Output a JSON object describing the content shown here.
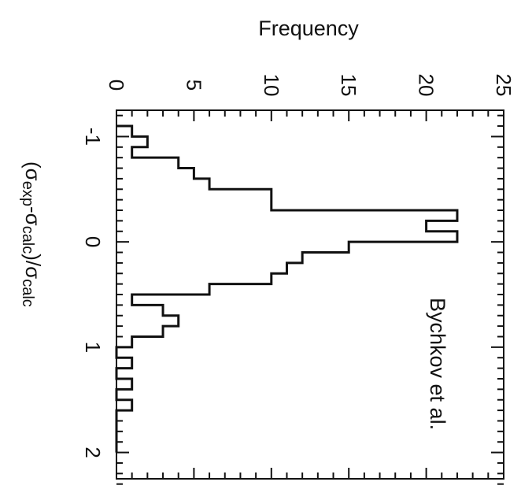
{
  "chart_data": {
    "type": "bar",
    "orientation": "rotated 90 degrees clockwise (x axis runs top to bottom, frequency runs left to right)",
    "title": "",
    "xlabel": "(σexp-σcalc)/σcalc",
    "xlabel_parts": [
      {
        "t": "(σ",
        "sub": false
      },
      {
        "t": "exp",
        "sub": true
      },
      {
        "t": "-σ",
        "sub": false
      },
      {
        "t": "calc",
        "sub": true
      },
      {
        "t": ")/σ",
        "sub": false
      },
      {
        "t": "calc",
        "sub": true
      }
    ],
    "ylabel": "Frequency",
    "annotation": "Bychkov et al.",
    "xlim": [
      -1.25,
      2.25
    ],
    "ylim": [
      0,
      25
    ],
    "x_ticks": [
      -1,
      0,
      1,
      2
    ],
    "x_tick_labels": [
      "-1",
      "0",
      "1",
      "2"
    ],
    "y_ticks": [
      0,
      5,
      10,
      15,
      20,
      25
    ],
    "y_tick_labels": [
      "0",
      "5",
      "10",
      "15",
      "20",
      "25"
    ],
    "bin_width": 0.1,
    "bin_starts": [
      -1.1,
      -1.0,
      -0.9,
      -0.8,
      -0.7,
      -0.6,
      -0.5,
      -0.4,
      -0.3,
      -0.2,
      -0.1,
      0.0,
      0.1,
      0.2,
      0.3,
      0.4,
      0.5,
      0.6,
      0.7,
      0.8,
      0.9,
      1.0,
      1.1,
      1.2,
      1.3,
      1.4,
      1.5,
      1.6,
      1.7,
      1.8,
      1.9
    ],
    "values": [
      1,
      2,
      1,
      4,
      5,
      6,
      10,
      10,
      22,
      20,
      22,
      15,
      12,
      11,
      10,
      6,
      1,
      3,
      4,
      3,
      1,
      0,
      1,
      0,
      1,
      0,
      1,
      0,
      0,
      0,
      0
    ],
    "grid": false,
    "legend": "none",
    "colors": {
      "line": "#111111",
      "background": "#ffffff"
    }
  }
}
